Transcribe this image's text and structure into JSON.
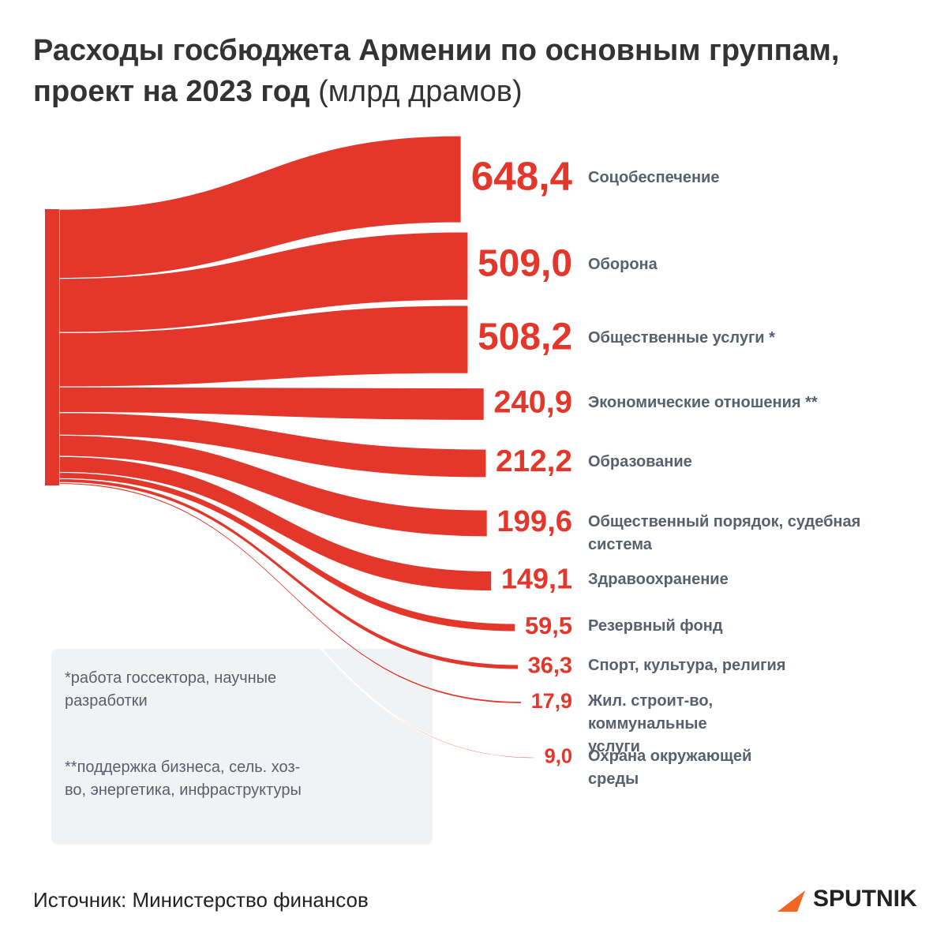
{
  "header": {
    "title": "Расходы госбюджета Армении по основным группам, проект на 2023 год",
    "subtitle": "(млрд драмов)"
  },
  "chart_data": {
    "type": "flow",
    "color": "#e4372c",
    "categories": [
      "Соцобеспечение",
      "Оборона",
      "Общественные услуги *",
      "Экономические отношения **",
      "Образование",
      "Общественный порядок, судебная система",
      "Здравоохранение",
      "Резервный фонд",
      "Спорт, культура, религия",
      "Жил. строит-во, коммунальные услуги",
      "Охрана окружающей среды"
    ],
    "values": [
      648.4,
      509.0,
      508.2,
      240.9,
      212.2,
      199.6,
      149.1,
      59.5,
      36.3,
      17.9,
      9.0
    ],
    "value_labels": [
      "648,4",
      "509,0",
      "508,2",
      "240,9",
      "212,2",
      "199,6",
      "149,1",
      "59,5",
      "36,3",
      "17,9",
      "9,0"
    ]
  },
  "notes": [
    "*работа госсектора, научные разработки",
    "**поддержка бизнеса, сель. хоз-во, энергетика, инфраструктуры"
  ],
  "footer": {
    "source": "Источник: Министерство финансов",
    "logo": "SPUTNIK"
  }
}
